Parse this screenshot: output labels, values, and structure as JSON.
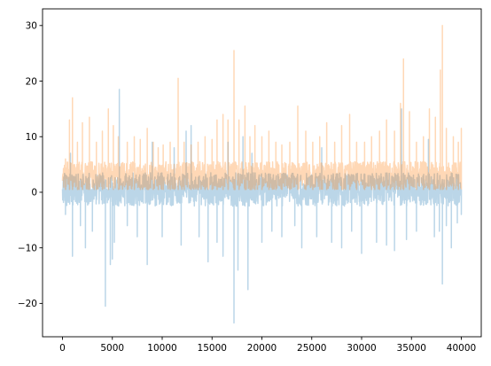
{
  "chart_data": {
    "type": "line",
    "title": "",
    "xlabel": "",
    "ylabel": "",
    "xlim": [
      -2000,
      42000
    ],
    "ylim": [
      -26,
      33
    ],
    "grid": false,
    "legend": "none",
    "x_ticks": [
      0,
      5000,
      10000,
      15000,
      20000,
      25000,
      30000,
      35000,
      40000
    ],
    "y_ticks": [
      -20,
      -10,
      0,
      10,
      20,
      30
    ],
    "x_tick_labels": [
      "0",
      "5000",
      "10000",
      "15000",
      "20000",
      "25000",
      "30000",
      "35000",
      "40000"
    ],
    "y_tick_labels": [
      "−20",
      "−10",
      "0",
      "10",
      "20",
      "30"
    ],
    "series": [
      {
        "color": "#1f77b4",
        "opacity": 0.3,
        "baseline": 0.5,
        "typical_high": 3,
        "typical_low": -3,
        "spikes": [
          [
            300,
            -4
          ],
          [
            800,
            7
          ],
          [
            1000,
            -11.5
          ],
          [
            1800,
            -6
          ],
          [
            2300,
            -10
          ],
          [
            3000,
            -7
          ],
          [
            4300,
            -20.5
          ],
          [
            4800,
            -13
          ],
          [
            5000,
            -12
          ],
          [
            5200,
            -9
          ],
          [
            5700,
            18.5
          ],
          [
            6500,
            -6
          ],
          [
            7500,
            -8
          ],
          [
            8500,
            -13
          ],
          [
            9000,
            9
          ],
          [
            10000,
            -8
          ],
          [
            11200,
            8
          ],
          [
            11900,
            -9.5
          ],
          [
            12400,
            11
          ],
          [
            12900,
            12
          ],
          [
            13700,
            -8
          ],
          [
            14600,
            -12.5
          ],
          [
            15500,
            -9
          ],
          [
            16100,
            -11.5
          ],
          [
            16600,
            9
          ],
          [
            17200,
            -23.5
          ],
          [
            17600,
            -14
          ],
          [
            18100,
            10
          ],
          [
            18600,
            -17.5
          ],
          [
            19000,
            7
          ],
          [
            20000,
            -9
          ],
          [
            21000,
            -7
          ],
          [
            22000,
            -8
          ],
          [
            23300,
            -6
          ],
          [
            24000,
            -10
          ],
          [
            25500,
            -8
          ],
          [
            26000,
            8
          ],
          [
            27000,
            -9
          ],
          [
            28000,
            -10
          ],
          [
            29000,
            -7
          ],
          [
            30000,
            -11
          ],
          [
            31500,
            -9
          ],
          [
            32500,
            -9.5
          ],
          [
            33300,
            -10.5
          ],
          [
            34000,
            15
          ],
          [
            34500,
            -8.5
          ],
          [
            35500,
            -7
          ],
          [
            36700,
            9.5
          ],
          [
            37300,
            -8
          ],
          [
            37800,
            -7
          ],
          [
            38100,
            -16.5
          ],
          [
            38500,
            -6
          ],
          [
            39000,
            -10
          ],
          [
            39600,
            -5.5
          ],
          [
            40000,
            -4
          ]
        ]
      },
      {
        "color": "#ff7f0e",
        "opacity": 0.3,
        "baseline": 0.5,
        "typical_high": 5,
        "typical_low": 0.5,
        "spikes": [
          [
            300,
            6
          ],
          [
            700,
            13
          ],
          [
            1000,
            17
          ],
          [
            1500,
            9
          ],
          [
            2000,
            12.5
          ],
          [
            2700,
            13.5
          ],
          [
            3400,
            9
          ],
          [
            4000,
            11
          ],
          [
            4600,
            15
          ],
          [
            5100,
            12
          ],
          [
            5600,
            10
          ],
          [
            6500,
            9
          ],
          [
            7200,
            10
          ],
          [
            7800,
            9.5
          ],
          [
            8500,
            11.5
          ],
          [
            9100,
            9
          ],
          [
            9600,
            8
          ],
          [
            10100,
            8.5
          ],
          [
            10800,
            9
          ],
          [
            11600,
            20.5
          ],
          [
            12200,
            9
          ],
          [
            12900,
            8.5
          ],
          [
            13600,
            9
          ],
          [
            14300,
            10
          ],
          [
            15000,
            9.5
          ],
          [
            15500,
            13
          ],
          [
            16100,
            14
          ],
          [
            16600,
            13
          ],
          [
            17200,
            25.5
          ],
          [
            17700,
            13
          ],
          [
            18300,
            15.5
          ],
          [
            18800,
            10
          ],
          [
            19300,
            12
          ],
          [
            20000,
            10
          ],
          [
            20700,
            11
          ],
          [
            21400,
            9
          ],
          [
            22000,
            8.5
          ],
          [
            22800,
            9
          ],
          [
            23600,
            15.5
          ],
          [
            24400,
            11
          ],
          [
            25100,
            9
          ],
          [
            25800,
            10
          ],
          [
            26500,
            12.5
          ],
          [
            27300,
            9
          ],
          [
            28000,
            12
          ],
          [
            28800,
            14
          ],
          [
            29500,
            9
          ],
          [
            30300,
            9
          ],
          [
            31000,
            10
          ],
          [
            31800,
            11
          ],
          [
            32500,
            13
          ],
          [
            33300,
            11
          ],
          [
            33900,
            16
          ],
          [
            34200,
            24
          ],
          [
            34800,
            14.5
          ],
          [
            35500,
            9
          ],
          [
            36200,
            10
          ],
          [
            36800,
            15
          ],
          [
            37400,
            13.5
          ],
          [
            37900,
            22
          ],
          [
            38100,
            30
          ],
          [
            38500,
            11.5
          ],
          [
            39200,
            10
          ],
          [
            39700,
            9
          ],
          [
            40000,
            11.5
          ]
        ]
      }
    ]
  }
}
